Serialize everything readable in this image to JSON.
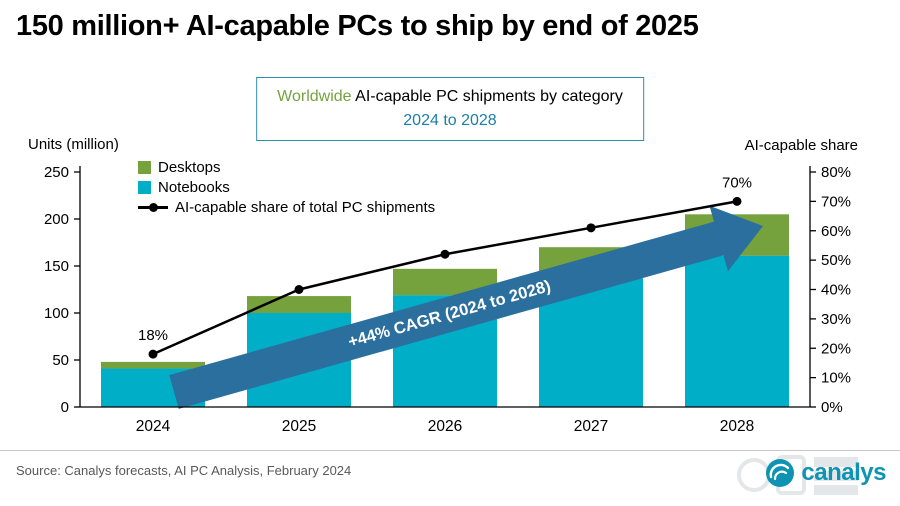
{
  "title": "150 million+ AI-capable PCs to ship by end of 2025",
  "subtitle": {
    "highlight": "Worldwide",
    "rest": " AI-capable PC shipments by category",
    "line2": "2024 to 2028"
  },
  "axes": {
    "left_label": "Units (million)",
    "right_label": "AI-capable share"
  },
  "legend": [
    {
      "label": "Desktops",
      "color": "#76a23e"
    },
    {
      "label": "Notebooks",
      "color": "#00aec7"
    },
    {
      "label": "AI-capable share of total PC shipments",
      "color": "#000000",
      "type": "line"
    }
  ],
  "arrow": {
    "label": "+44% CAGR (2024 to 2028)",
    "color": "#2b6f9e",
    "text_color": "#ffffff"
  },
  "source": "Source: Canalys forecasts, AI PC Analysis, February 2024",
  "logo_text": "canalys",
  "chart_data": {
    "type": "bar",
    "stacked": true,
    "stack_order": "bottom-to-top",
    "title": "Worldwide AI-capable PC shipments by category 2024 to 2028",
    "categories": [
      "2024",
      "2025",
      "2026",
      "2027",
      "2028"
    ],
    "series": [
      {
        "name": "Notebooks",
        "color": "#00aec7",
        "values": [
          41,
          100,
          119,
          137,
          161
        ]
      },
      {
        "name": "Desktops",
        "color": "#76a23e",
        "values": [
          7,
          18,
          28,
          33,
          44
        ]
      }
    ],
    "totals": [
      48,
      118,
      147,
      170,
      205
    ],
    "line_series": {
      "name": "AI-capable share of total PC shipments",
      "color": "#000000",
      "unit": "%",
      "values": [
        18,
        40,
        52,
        61,
        70
      ],
      "labeled_points": [
        0,
        4
      ]
    },
    "left_axis": {
      "label": "Units (million)",
      "min": 0,
      "max": 250,
      "step": 50
    },
    "right_axis": {
      "label": "AI-capable share",
      "min": 0,
      "max": 80,
      "step": 10,
      "format": "percent"
    },
    "grid": false,
    "legend_position": "top-left"
  }
}
